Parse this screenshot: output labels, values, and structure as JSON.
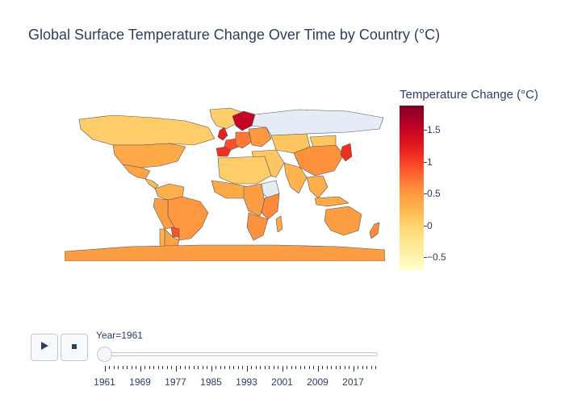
{
  "chart_data": {
    "type": "choropleth",
    "title": "Global Surface Temperature Change Over Time by Country (°C)",
    "colorbar": {
      "title": "Temperature Change (°C)",
      "colorscale": [
        "#ffffcc",
        "#ffeda0",
        "#fed976",
        "#feb24c",
        "#fd8d3c",
        "#fc4e2a",
        "#e31a1c",
        "#bd0026",
        "#800026"
      ],
      "range": [
        -0.7,
        1.88
      ],
      "ticks": [
        {
          "value": 1.5,
          "label": "1.5"
        },
        {
          "value": 1,
          "label": "1"
        },
        {
          "value": 0.5,
          "label": "0.5"
        },
        {
          "value": 0,
          "label": "0"
        },
        {
          "value": -0.5,
          "label": "−0.5"
        }
      ]
    },
    "frame_label": "Year=1961",
    "slider_ticks": [
      "1961",
      "1969",
      "1977",
      "1985",
      "1993",
      "2001",
      "2009",
      "2017"
    ],
    "no_data_color": "#e5ecf6",
    "regions": [
      {
        "name": "Greenland",
        "value": 0.05
      },
      {
        "name": "Canada",
        "value": 0.05
      },
      {
        "name": "United States",
        "value": 0.35
      },
      {
        "name": "Mexico",
        "value": 0.4
      },
      {
        "name": "Central America",
        "value": 0.2
      },
      {
        "name": "Brazil",
        "value": 0.5
      },
      {
        "name": "Colombia / Venezuela",
        "value": 0.3
      },
      {
        "name": "Peru / Bolivia",
        "value": 0.45
      },
      {
        "name": "Argentina",
        "value": 0.4
      },
      {
        "name": "Chile",
        "value": 0.25
      },
      {
        "name": "Paraguay",
        "value": 0.9
      },
      {
        "name": "Scandinavia",
        "value": 1.5
      },
      {
        "name": "United Kingdom",
        "value": 1.2
      },
      {
        "name": "Spain / Portugal",
        "value": 1.1
      },
      {
        "name": "France",
        "value": 0.9
      },
      {
        "name": "Central Europe",
        "value": 0.7
      },
      {
        "name": "Eastern Europe",
        "value": 0.5
      },
      {
        "name": "Russia",
        "value": null
      },
      {
        "name": "Kazakhstan / Central Asia",
        "value": 0.1
      },
      {
        "name": "Middle East",
        "value": 0.1
      },
      {
        "name": "China",
        "value": 0.55
      },
      {
        "name": "Mongolia",
        "value": 0.1
      },
      {
        "name": "India",
        "value": 0.25
      },
      {
        "name": "Southeast Asia",
        "value": 0.3
      },
      {
        "name": "Japan",
        "value": 1.1
      },
      {
        "name": "North Africa",
        "value": 0.05
      },
      {
        "name": "West Africa",
        "value": 0.35
      },
      {
        "name": "Central Africa",
        "value": 0.45
      },
      {
        "name": "Ethiopia",
        "value": null
      },
      {
        "name": "East Africa",
        "value": 0.6
      },
      {
        "name": "Southern Africa",
        "value": 0.55
      },
      {
        "name": "Madagascar",
        "value": 0.35
      },
      {
        "name": "Indonesia",
        "value": 0.35
      },
      {
        "name": "Australia",
        "value": 0.45
      },
      {
        "name": "New Zealand",
        "value": 0.6
      },
      {
        "name": "Antarctica",
        "value": 0.45
      }
    ]
  },
  "controls": {
    "play_icon": "play-icon",
    "stop_icon": "stop-icon"
  }
}
